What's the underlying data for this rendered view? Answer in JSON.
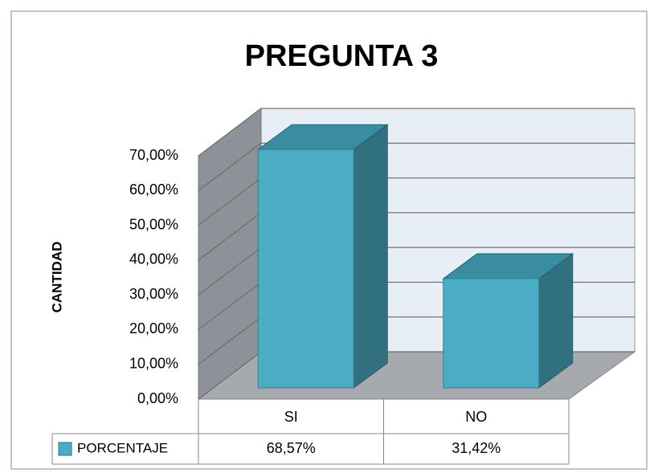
{
  "chart_data": {
    "type": "bar3d",
    "title": "PREGUNTA 3",
    "y_label": "CANTIDAD",
    "categories": [
      "SI",
      "NO"
    ],
    "series": [
      {
        "name": "PORCENTAJE",
        "color": "#4bacc6",
        "values": [
          68.57,
          31.42
        ],
        "value_labels": [
          "68,57%",
          "31,42%"
        ]
      }
    ],
    "ylim": [
      0,
      70
    ],
    "yticks": [
      {
        "value": 0,
        "label": "0,00%"
      },
      {
        "value": 10,
        "label": "10,00%"
      },
      {
        "value": 20,
        "label": "20,00%"
      },
      {
        "value": 30,
        "label": "30,00%"
      },
      {
        "value": 40,
        "label": "40,00%"
      },
      {
        "value": 50,
        "label": "50,00%"
      },
      {
        "value": 60,
        "label": "60,00%"
      },
      {
        "value": 70,
        "label": "70,00%"
      }
    ],
    "grid": true,
    "data_table": true
  }
}
